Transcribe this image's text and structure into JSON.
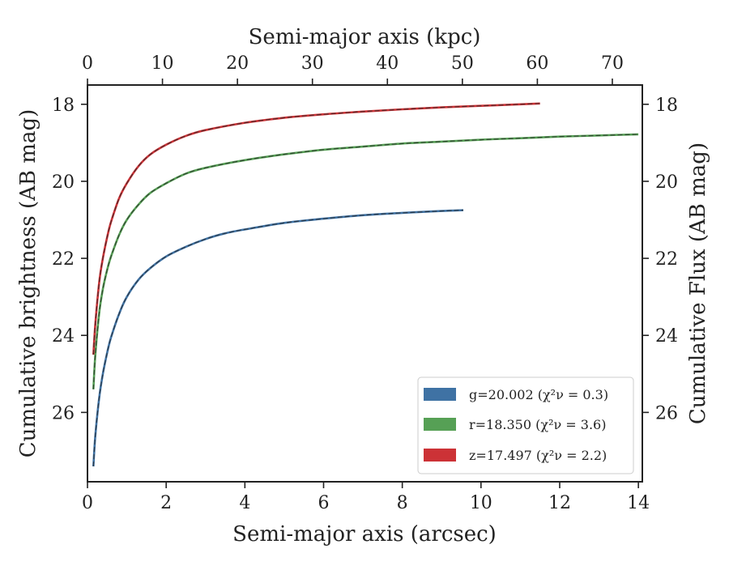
{
  "chart_data": {
    "type": "line",
    "title": "",
    "xlabel_bottom": "Semi-major axis (arcsec)",
    "xlabel_top": "Semi-major axis (kpc)",
    "ylabel_left": "Cumulative brightness (AB mag)",
    "ylabel_right": "Cumulative Flux (AB mag)",
    "xlim_bottom": [
      0,
      14.1
    ],
    "xlim_top": [
      0,
      74.0
    ],
    "ylim": [
      27.8,
      17.5
    ],
    "y_inverted": true,
    "grid": false,
    "legend_position": "lower-right",
    "x_ticks_bottom": [
      0,
      2,
      4,
      6,
      8,
      10,
      12,
      14
    ],
    "x_ticks_top": [
      0,
      10,
      20,
      30,
      40,
      50,
      60,
      70
    ],
    "y_ticks": [
      18,
      20,
      22,
      24,
      26
    ],
    "series": [
      {
        "name": "g=20.002 (χ²ν = 0.3)",
        "color": "#3f72a4",
        "x": [
          0.15,
          0.2,
          0.3,
          0.4,
          0.5,
          0.6,
          0.8,
          1.0,
          1.3,
          1.6,
          2.0,
          2.5,
          3.0,
          3.5,
          4.0,
          5.0,
          6.0,
          7.0,
          8.0,
          9.0,
          9.55
        ],
        "y": [
          27.4,
          26.6,
          25.6,
          24.95,
          24.45,
          24.05,
          23.45,
          23.0,
          22.55,
          22.25,
          21.95,
          21.7,
          21.5,
          21.35,
          21.25,
          21.08,
          20.97,
          20.88,
          20.82,
          20.77,
          20.75
        ]
      },
      {
        "name": "r=18.350 (χ²ν = 3.6)",
        "color": "#56a055",
        "x": [
          0.15,
          0.2,
          0.3,
          0.4,
          0.5,
          0.6,
          0.8,
          1.0,
          1.3,
          1.6,
          2.0,
          2.5,
          3.0,
          4.0,
          5.0,
          6.0,
          7.0,
          8.0,
          9.0,
          10.0,
          11.0,
          12.0,
          13.0,
          14.0
        ],
        "y": [
          25.4,
          24.5,
          23.4,
          22.75,
          22.3,
          21.95,
          21.4,
          21.0,
          20.6,
          20.3,
          20.05,
          19.8,
          19.65,
          19.45,
          19.3,
          19.18,
          19.1,
          19.02,
          18.97,
          18.92,
          18.88,
          18.84,
          18.81,
          18.78
        ]
      },
      {
        "name": "z=17.497 (χ²ν = 2.2)",
        "color": "#cc3236",
        "x": [
          0.15,
          0.2,
          0.3,
          0.4,
          0.5,
          0.6,
          0.8,
          1.0,
          1.3,
          1.6,
          2.0,
          2.5,
          3.0,
          4.0,
          5.0,
          6.0,
          7.0,
          8.0,
          9.0,
          10.0,
          11.0,
          11.5
        ],
        "y": [
          24.5,
          23.7,
          22.6,
          21.95,
          21.45,
          21.05,
          20.45,
          20.05,
          19.6,
          19.3,
          19.05,
          18.82,
          18.67,
          18.48,
          18.35,
          18.26,
          18.19,
          18.13,
          18.08,
          18.04,
          18.0,
          17.98
        ]
      }
    ]
  }
}
